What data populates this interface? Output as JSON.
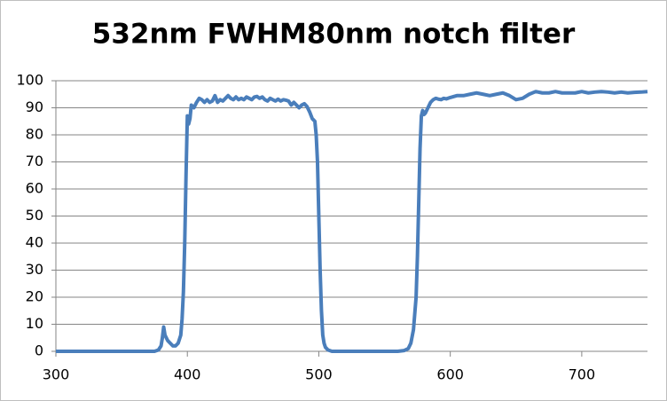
{
  "chart_data": {
    "type": "line",
    "title": "532nm FWHM80nm notch filter",
    "color": "#4a7ebb",
    "grid": true,
    "x": [
      300,
      320,
      340,
      360,
      375,
      378,
      380,
      381,
      382,
      383,
      385,
      387,
      389,
      391,
      393,
      395,
      396,
      397,
      398,
      399,
      400,
      401,
      402,
      403,
      405,
      407,
      409,
      411,
      413,
      415,
      417,
      419,
      421,
      423,
      425,
      427,
      429,
      431,
      433,
      435,
      437,
      439,
      441,
      443,
      445,
      447,
      449,
      451,
      453,
      455,
      457,
      459,
      461,
      463,
      465,
      467,
      469,
      471,
      473,
      475,
      477,
      479,
      481,
      483,
      485,
      487,
      489,
      491,
      493,
      495,
      497,
      498,
      499,
      500,
      501,
      502,
      503,
      504,
      505,
      507,
      510,
      530,
      550,
      560,
      565,
      568,
      570,
      572,
      574,
      575,
      576,
      577,
      578,
      579,
      580,
      581,
      583,
      585,
      587,
      589,
      591,
      593,
      595,
      597,
      600,
      605,
      610,
      615,
      620,
      625,
      630,
      635,
      640,
      645,
      650,
      655,
      660,
      665,
      670,
      675,
      680,
      685,
      690,
      695,
      700,
      705,
      710,
      715,
      720,
      725,
      730,
      735,
      740,
      745,
      750
    ],
    "values": [
      0,
      0,
      0,
      0,
      0,
      0.5,
      2,
      5,
      9,
      6,
      4,
      3,
      2,
      2,
      3,
      6,
      12,
      22,
      40,
      65,
      87,
      84,
      86,
      91,
      90,
      92,
      93.5,
      93,
      92,
      93,
      92,
      92.5,
      94.5,
      92,
      93,
      92.5,
      93.5,
      94.5,
      93.5,
      93,
      94,
      93,
      93.5,
      93,
      94,
      93.5,
      93,
      94,
      94.2,
      93.5,
      94,
      93,
      92.5,
      93.5,
      93,
      92.5,
      93.2,
      92.5,
      93,
      92.8,
      92.5,
      91,
      92,
      91,
      90,
      91,
      91.5,
      90.5,
      88.5,
      86,
      85,
      80,
      70,
      50,
      30,
      15,
      6,
      3,
      1.5,
      0.5,
      0,
      0,
      0,
      0,
      0.3,
      1,
      3,
      8,
      20,
      35,
      55,
      75,
      87,
      89,
      87.5,
      88,
      90,
      92,
      93,
      93.5,
      93.2,
      93,
      93.5,
      93.3,
      93.8,
      94.5,
      94.5,
      95,
      95.5,
      95,
      94.5,
      95,
      95.5,
      94.5,
      93,
      93.5,
      95,
      96,
      95.5,
      95.5,
      96,
      95.5,
      95.5,
      95.5,
      96,
      95.5,
      95.8,
      96,
      95.8,
      95.5,
      95.8,
      95.5,
      95.7,
      95.8,
      96
    ],
    "xlim": [
      300,
      750
    ],
    "xticks": [
      300,
      400,
      500,
      600,
      700
    ],
    "ylim": [
      0,
      100
    ],
    "yticks": [
      0,
      10,
      20,
      30,
      40,
      50,
      60,
      70,
      80,
      90,
      100
    ]
  }
}
